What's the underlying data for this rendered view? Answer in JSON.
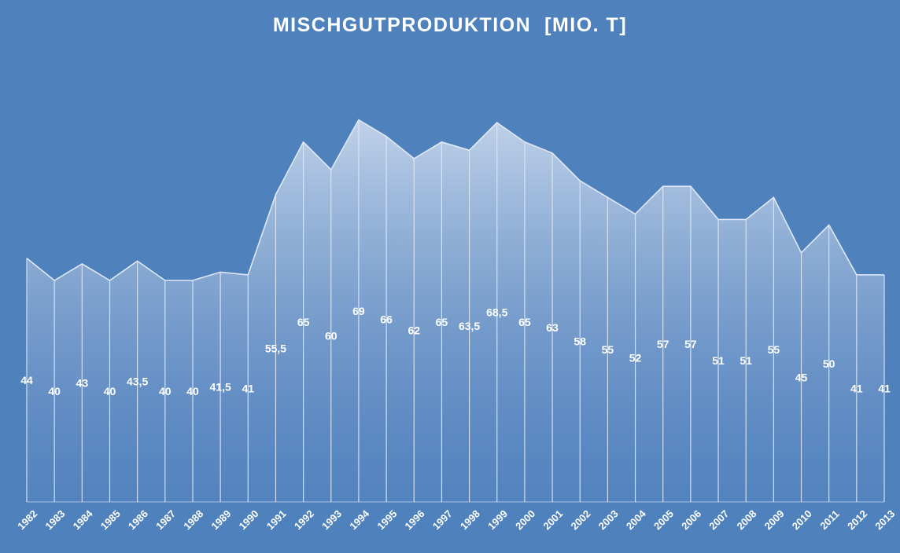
{
  "chart_data": {
    "type": "area",
    "title": "MISCHGUTPRODUKTION  [MIO. T]",
    "xlabel": "",
    "ylabel": "",
    "grid": false,
    "legend": "none",
    "ylim": [
      0,
      75
    ],
    "categories": [
      "1982",
      "1983",
      "1984",
      "1985",
      "1986",
      "1987",
      "1988",
      "1989",
      "1990",
      "1991",
      "1992",
      "1993",
      "1994",
      "1995",
      "1996",
      "1997",
      "1998",
      "1999",
      "2000",
      "2001",
      "2002",
      "2003",
      "2004",
      "2005",
      "2006",
      "2007",
      "2008",
      "2009",
      "2010",
      "2011",
      "2012",
      "2013"
    ],
    "series": [
      {
        "values": [
          44,
          40,
          43,
          40,
          43.5,
          40,
          40,
          41.5,
          41,
          55.5,
          65,
          60,
          69,
          66,
          62,
          65,
          63.5,
          68.5,
          65,
          63,
          58,
          55,
          52,
          57,
          57,
          51,
          51,
          55,
          45,
          50,
          41,
          41
        ],
        "value_labels": [
          "44",
          "40",
          "43",
          "40",
          "43,5",
          "40",
          "40",
          "41,5",
          "41",
          "55,5",
          "65",
          "60",
          "69",
          "66",
          "62",
          "65",
          "63,5",
          "68,5",
          "65",
          "63",
          "58",
          "55",
          "52",
          "57",
          "57",
          "51",
          "51",
          "55",
          "45",
          "50",
          "41",
          "41"
        ]
      }
    ],
    "colors": {
      "background": "#4f81bd",
      "area_top": "#c9d8ec",
      "area_bottom": "#5a86c0",
      "line": "#dfe8f5",
      "text": "#ffffff"
    }
  }
}
